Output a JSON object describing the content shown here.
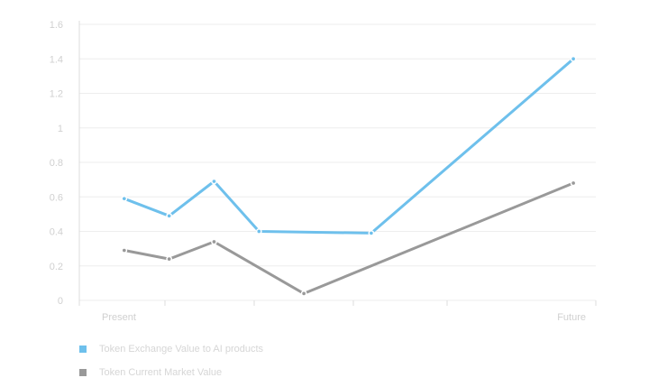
{
  "chart_data": {
    "type": "line",
    "x_tick_labels": [
      "Present",
      "",
      "",
      "",
      "",
      "Future"
    ],
    "y_ticks": [
      "0",
      "0.2",
      "0.4",
      "0.6",
      "0.8",
      "1",
      "1.2",
      "1.4",
      "1.6"
    ],
    "ylim": [
      0,
      1.6
    ],
    "grid": true,
    "legend_position": "bottom-left",
    "series": [
      {
        "name": "Token Exchange Value to AI products",
        "color": "#6ec0ec",
        "points": [
          [
            1,
            0.59
          ],
          [
            2,
            0.49
          ],
          [
            3,
            0.69
          ],
          [
            4,
            0.4
          ],
          [
            6.5,
            0.39
          ],
          [
            11,
            1.4
          ]
        ]
      },
      {
        "name": "Token Current Market Value",
        "color": "#999999",
        "points": [
          [
            1,
            0.29
          ],
          [
            2,
            0.24
          ],
          [
            3,
            0.34
          ],
          [
            5,
            0.04
          ],
          [
            11,
            0.68
          ]
        ]
      }
    ]
  }
}
